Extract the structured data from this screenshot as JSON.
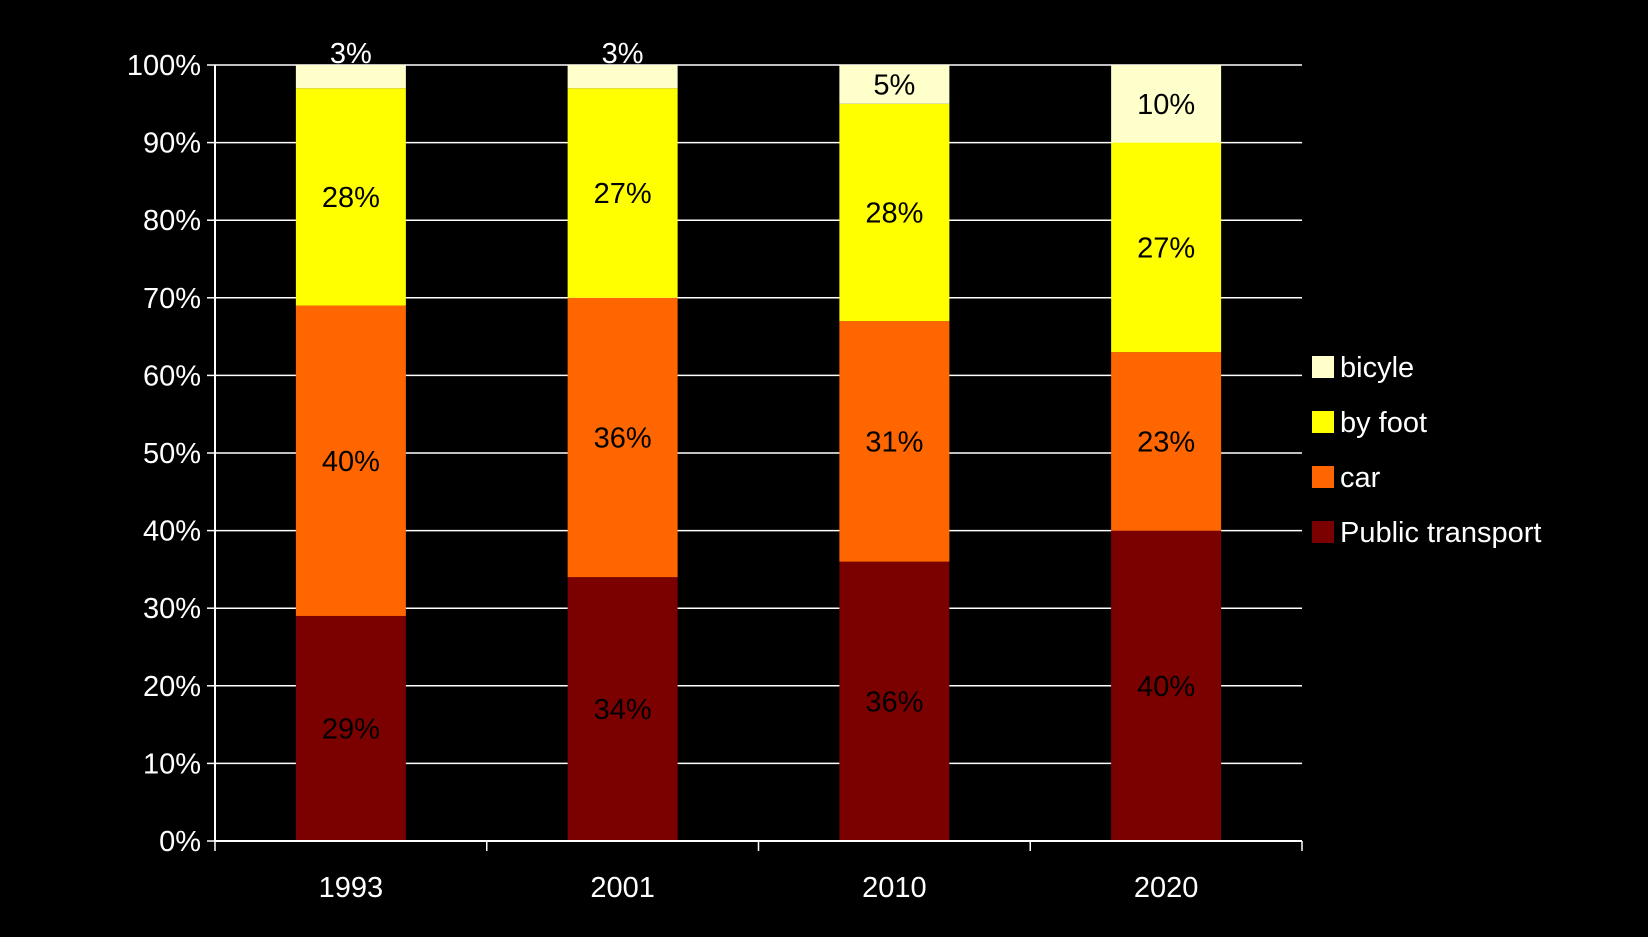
{
  "chart_data": {
    "type": "bar",
    "stacked": true,
    "categories": [
      "1993",
      "2001",
      "2010",
      "2020"
    ],
    "series": [
      {
        "name": "Public transport",
        "values": [
          29,
          34,
          36,
          40
        ],
        "labels": [
          "29%",
          "34%",
          "36%",
          "40%"
        ],
        "color": "#7b0000",
        "label_color": "#000000"
      },
      {
        "name": "car",
        "values": [
          40,
          36,
          31,
          23
        ],
        "labels": [
          "40%",
          "36%",
          "31%",
          "23%"
        ],
        "color": "#ff6600",
        "label_color": "#000000"
      },
      {
        "name": "by foot",
        "values": [
          28,
          27,
          28,
          27
        ],
        "labels": [
          "28%",
          "27%",
          "28%",
          "27%"
        ],
        "color": "#ffff00",
        "label_color": "#000000"
      },
      {
        "name": "bicyle",
        "values": [
          3,
          3,
          5,
          10
        ],
        "labels": [
          "3%",
          "3%",
          "5%",
          "10%"
        ],
        "color": "#ffffcc",
        "label_color": "#000000"
      }
    ],
    "ylim": [
      0,
      100
    ],
    "yticks": [
      0,
      10,
      20,
      30,
      40,
      50,
      60,
      70,
      80,
      90,
      100
    ],
    "ytick_labels": [
      "0%",
      "10%",
      "20%",
      "30%",
      "40%",
      "50%",
      "60%",
      "70%",
      "80%",
      "90%",
      "100%"
    ],
    "grid": true,
    "legend_position": "right",
    "legend_order": [
      "bicyle",
      "by foot",
      "car",
      "Public transport"
    ],
    "title": "",
    "xlabel": "",
    "ylabel": ""
  },
  "colors": {
    "background": "#000000",
    "axis": "#ffffff",
    "gridline": "#ffffff"
  }
}
